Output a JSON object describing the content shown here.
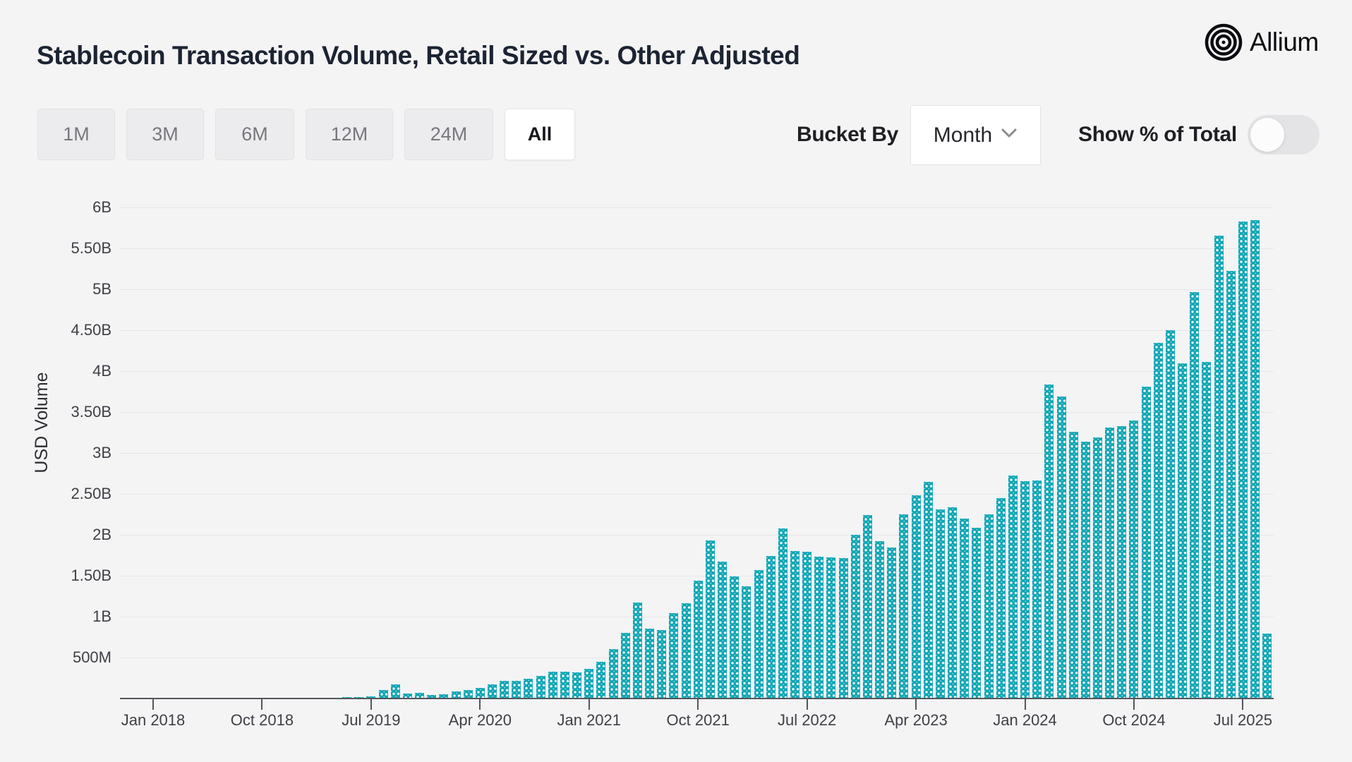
{
  "header": {
    "title": "Stablecoin Transaction Volume, Retail Sized vs. Other Adjusted",
    "logo_text": "Allium"
  },
  "controls": {
    "range_buttons": [
      {
        "label": "1M",
        "selected": false
      },
      {
        "label": "3M",
        "selected": false
      },
      {
        "label": "6M",
        "selected": false
      },
      {
        "label": "12M",
        "selected": false
      },
      {
        "label": "24M",
        "selected": false
      },
      {
        "label": "All",
        "selected": true
      }
    ],
    "bucket_by_label": "Bucket By",
    "bucket_by_value": "Month",
    "show_pct_label": "Show % of Total",
    "show_pct_enabled": false
  },
  "chart_data": {
    "type": "bar",
    "title": "Stablecoin Transaction Volume, Retail Sized vs. Other Adjusted",
    "xlabel": "",
    "ylabel": "USD Volume",
    "bar_color": "#0ba5b4",
    "background_color": "#f4f4f5",
    "gridline_color": "#e6e6e9",
    "grid": true,
    "legend": false,
    "ylim_usd_millions": [
      0,
      6470
    ],
    "y_ticks": [
      {
        "label": "500M",
        "value": 500
      },
      {
        "label": "1B",
        "value": 1000
      },
      {
        "label": "1.50B",
        "value": 1500
      },
      {
        "label": "2B",
        "value": 2000
      },
      {
        "label": "2.50B",
        "value": 2500
      },
      {
        "label": "3B",
        "value": 3000
      },
      {
        "label": "3.50B",
        "value": 3500
      },
      {
        "label": "4B",
        "value": 4000
      },
      {
        "label": "4.50B",
        "value": 4500
      },
      {
        "label": "5B",
        "value": 5000
      },
      {
        "label": "5.50B",
        "value": 5500
      },
      {
        "label": "6B",
        "value": 6000
      }
    ],
    "x_ticks": [
      {
        "label": "Jan 2018",
        "month_index": 0
      },
      {
        "label": "Oct 2018",
        "month_index": 9
      },
      {
        "label": "Jul 2019",
        "month_index": 18
      },
      {
        "label": "Apr 2020",
        "month_index": 27
      },
      {
        "label": "Jan 2021",
        "month_index": 36
      },
      {
        "label": "Oct 2021",
        "month_index": 45
      },
      {
        "label": "Jul 2022",
        "month_index": 54
      },
      {
        "label": "Apr 2023",
        "month_index": 63
      },
      {
        "label": "Jan 2024",
        "month_index": 72
      },
      {
        "label": "Oct 2024",
        "month_index": 81
      },
      {
        "label": "Jul 2025",
        "month_index": 90
      }
    ],
    "categories": [
      "Jan 2018",
      "Feb 2018",
      "Mar 2018",
      "Apr 2018",
      "May 2018",
      "Jun 2018",
      "Jul 2018",
      "Aug 2018",
      "Sep 2018",
      "Oct 2018",
      "Nov 2018",
      "Dec 2018",
      "Jan 2019",
      "Feb 2019",
      "Mar 2019",
      "Apr 2019",
      "May 2019",
      "Jun 2019",
      "Jul 2019",
      "Aug 2019",
      "Sep 2019",
      "Oct 2019",
      "Nov 2019",
      "Dec 2019",
      "Jan 2020",
      "Feb 2020",
      "Mar 2020",
      "Apr 2020",
      "May 2020",
      "Jun 2020",
      "Jul 2020",
      "Aug 2020",
      "Sep 2020",
      "Oct 2020",
      "Nov 2020",
      "Dec 2020",
      "Jan 2021",
      "Feb 2021",
      "Mar 2021",
      "Apr 2021",
      "May 2021",
      "Jun 2021",
      "Jul 2021",
      "Aug 2021",
      "Sep 2021",
      "Oct 2021",
      "Nov 2021",
      "Dec 2021",
      "Jan 2022",
      "Feb 2022",
      "Mar 2022",
      "Apr 2022",
      "May 2022",
      "Jun 2022",
      "Jul 2022",
      "Aug 2022",
      "Sep 2022",
      "Oct 2022",
      "Nov 2022",
      "Dec 2022",
      "Jan 2023",
      "Feb 2023",
      "Mar 2023",
      "Apr 2023",
      "May 2023",
      "Jun 2023",
      "Jul 2023",
      "Aug 2023",
      "Sep 2023",
      "Oct 2023",
      "Nov 2023",
      "Dec 2023",
      "Jan 2024",
      "Feb 2024",
      "Mar 2024",
      "Apr 2024",
      "May 2024",
      "Jun 2024",
      "Jul 2024",
      "Aug 2024",
      "Sep 2024",
      "Oct 2024",
      "Nov 2024",
      "Dec 2024",
      "Jan 2025",
      "Feb 2025",
      "Mar 2025",
      "Apr 2025",
      "May 2025",
      "Jun 2025",
      "Jul 2025",
      "Aug 2025",
      "Sep 2025"
    ],
    "values_usd_millions": [
      2,
      2,
      2,
      3,
      3,
      3,
      3,
      4,
      4,
      4,
      5,
      5,
      6,
      6,
      8,
      10,
      14,
      20,
      26,
      100,
      170,
      62,
      70,
      45,
      52,
      86,
      104,
      130,
      172,
      215,
      215,
      242,
      276,
      330,
      332,
      322,
      360,
      450,
      600,
      800,
      1170,
      852,
      840,
      1040,
      1168,
      1440,
      1930,
      1670,
      1490,
      1372,
      1570,
      1740,
      2080,
      1800,
      1795,
      1732,
      1722,
      1718,
      2005,
      2240,
      1920,
      1850,
      2250,
      2480,
      2650,
      2312,
      2338,
      2200,
      2090,
      2250,
      2450,
      2730,
      2660,
      2662,
      3840,
      3690,
      3260,
      3140,
      3190,
      3310,
      3332,
      3400,
      3810,
      4350,
      4500,
      4100,
      4970,
      4112,
      5660,
      5230,
      5830,
      5850,
      790
    ]
  }
}
